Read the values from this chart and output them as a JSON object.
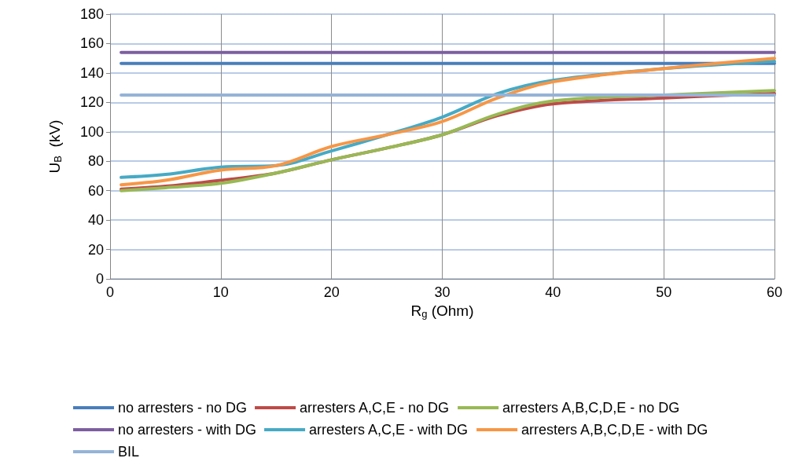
{
  "chart_data": {
    "type": "line",
    "xlabel": "R$_{g}$ (Ohm)",
    "ylabel": "U$_{B}$  (kV)",
    "x": [
      1,
      5,
      10,
      15,
      20,
      25,
      30,
      35,
      40,
      50,
      60
    ],
    "xlim": [
      0,
      60
    ],
    "xticks": [
      0,
      10,
      20,
      30,
      40,
      50,
      60
    ],
    "ylim": [
      0,
      180
    ],
    "yticks": [
      0,
      20,
      40,
      60,
      80,
      100,
      120,
      140,
      160,
      180
    ],
    "grid": true,
    "legend": "bottom",
    "marker": "none",
    "line_style": "solid",
    "series": [
      {
        "name": "no arresters - no DG",
        "color": "#4a7ebb",
        "values": [
          146.5,
          146.5,
          146.5,
          146.5,
          146.5,
          146.5,
          146.5,
          146.5,
          146.5,
          146.5,
          146.5
        ]
      },
      {
        "name": "arresters A,C,E - no DG",
        "color": "#be4b48",
        "values": [
          61,
          63,
          67,
          72,
          81,
          89,
          98,
          111,
          119,
          123,
          126
        ]
      },
      {
        "name": "arresters A,B,C,D,E - no DG",
        "color": "#98b954",
        "values": [
          60,
          62,
          65,
          72,
          81,
          89,
          98,
          112,
          121,
          125,
          128
        ]
      },
      {
        "name": "no arresters - with DG",
        "color": "#7d5fa0",
        "values": [
          154,
          154,
          154,
          154,
          154,
          154,
          154,
          154,
          154,
          154,
          154
        ]
      },
      {
        "name": "arresters A,C,E - with DG",
        "color": "#46aac5",
        "values": [
          69,
          71,
          76,
          77,
          87,
          98,
          110,
          126,
          135,
          143,
          148
        ]
      },
      {
        "name": "arresters A,B,C,D,E - with DG",
        "color": "#f79646",
        "values": [
          64,
          67,
          74,
          77,
          90,
          98,
          107,
          123,
          134,
          143,
          150
        ]
      },
      {
        "name": "BIL",
        "color": "#95b3d7",
        "values": [
          125,
          125,
          125,
          125,
          125,
          125,
          125,
          125,
          125,
          125,
          125
        ]
      }
    ]
  }
}
